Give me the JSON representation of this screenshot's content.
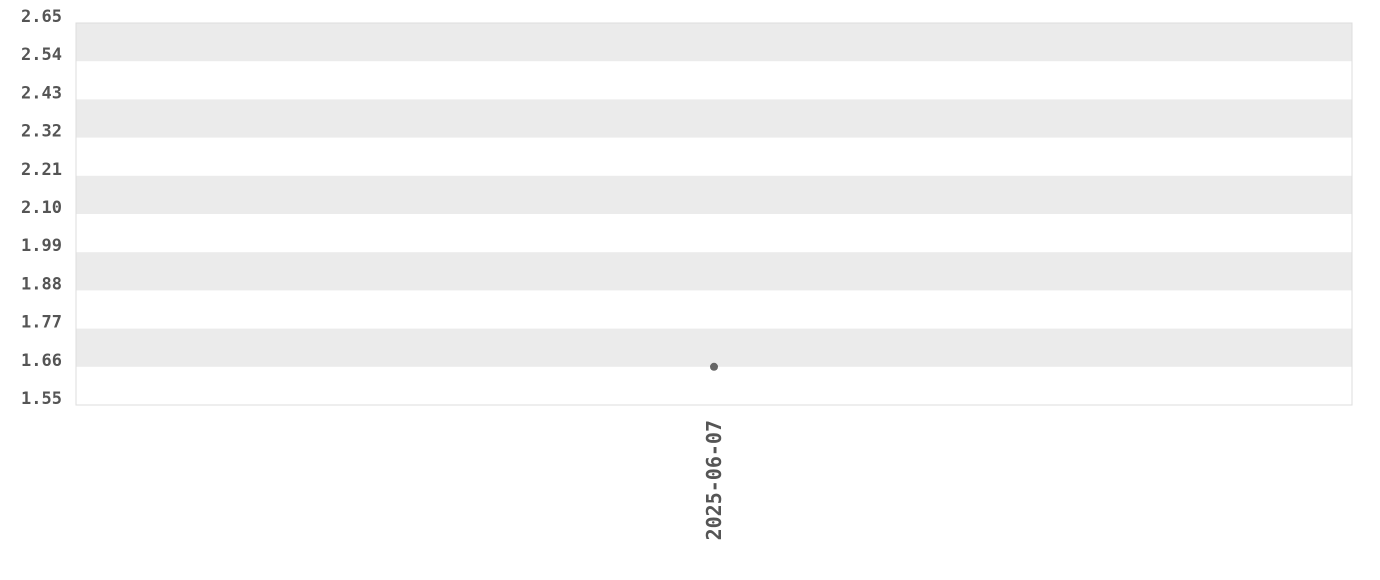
{
  "chart_data": {
    "type": "scatter",
    "title": "",
    "xlabel": "",
    "ylabel": "",
    "x_tick_labels": [
      "2025-06-07"
    ],
    "y_tick_labels": [
      "2.65",
      "2.54",
      "2.43",
      "2.32",
      "2.21",
      "2.10",
      "1.99",
      "1.88",
      "1.77",
      "1.66",
      "1.55"
    ],
    "ylim": [
      1.55,
      2.65
    ],
    "grid": "alternating horizontal bands",
    "points": [
      {
        "x": "2025-06-07",
        "y": 1.66
      }
    ],
    "colors": {
      "point": "#666666",
      "band": "#ebebeb",
      "border": "#dddddd",
      "text": "#555555"
    }
  }
}
